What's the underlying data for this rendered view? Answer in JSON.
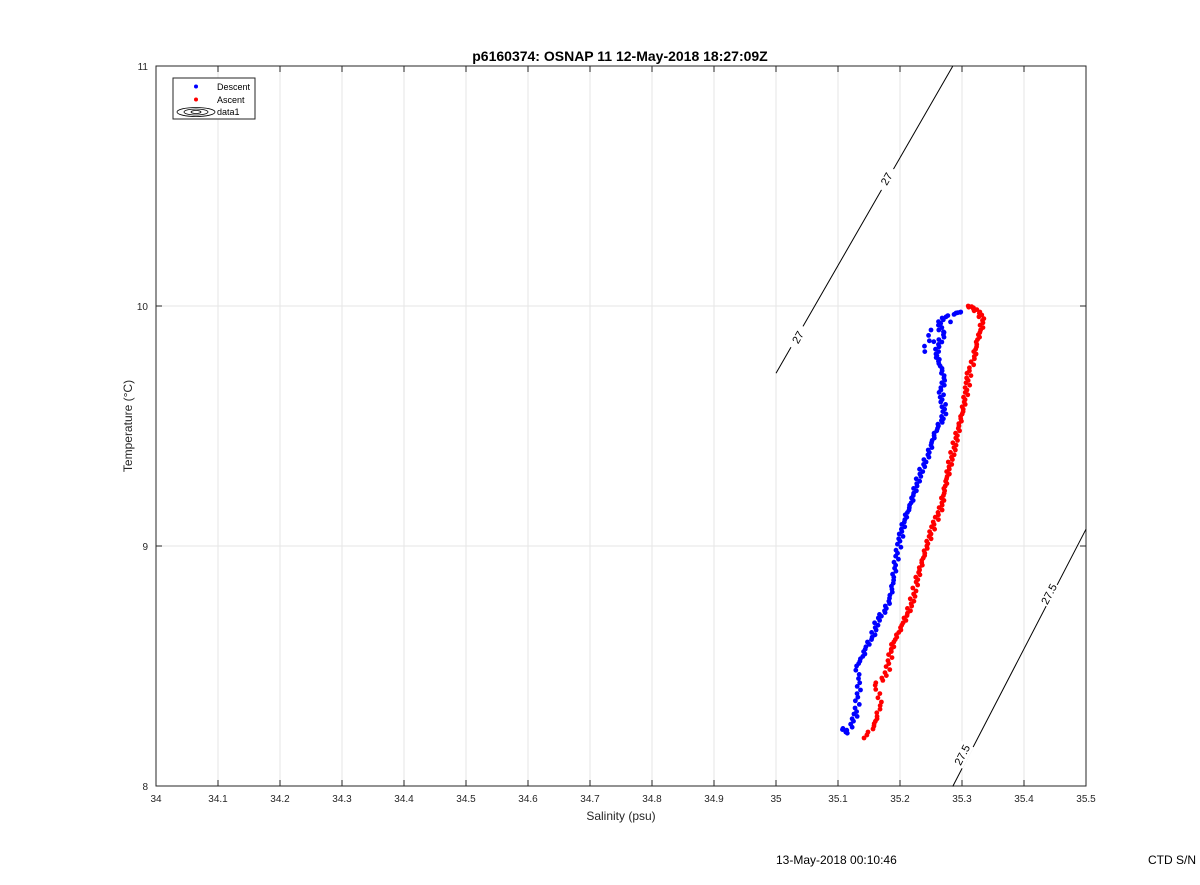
{
  "chart_data": {
    "type": "scatter",
    "title": "p6160374: OSNAP 11 12-May-2018 18:27:09Z",
    "xlabel": "Salinity (psu)",
    "ylabel": "Temperature (°C)",
    "xlim": [
      34,
      35.5
    ],
    "ylim": [
      8,
      11
    ],
    "x_ticks": [
      "34",
      "34.1",
      "34.2",
      "34.3",
      "34.4",
      "34.5",
      "34.6",
      "34.7",
      "34.8",
      "34.9",
      "35",
      "35.1",
      "35.2",
      "35.3",
      "35.4",
      "35.5"
    ],
    "y_ticks": [
      "8",
      "9",
      "10",
      "11"
    ],
    "grid": true,
    "legend_position": "top-left",
    "legend": [
      "Descent",
      "Ascent",
      "data1"
    ],
    "series": [
      {
        "name": "Descent",
        "color": "#0000ff",
        "points": [
          [
            35.108,
            8.24
          ],
          [
            35.115,
            8.22
          ],
          [
            35.125,
            8.27
          ],
          [
            35.13,
            8.31
          ],
          [
            35.132,
            8.37
          ],
          [
            35.135,
            8.43
          ],
          [
            35.13,
            8.5
          ],
          [
            35.14,
            8.54
          ],
          [
            35.145,
            8.58
          ],
          [
            35.155,
            8.62
          ],
          [
            35.16,
            8.66
          ],
          [
            35.165,
            8.7
          ],
          [
            35.175,
            8.73
          ],
          [
            35.182,
            8.77
          ],
          [
            35.187,
            8.82
          ],
          [
            35.19,
            8.87
          ],
          [
            35.193,
            8.92
          ],
          [
            35.196,
            8.97
          ],
          [
            35.2,
            9.02
          ],
          [
            35.203,
            9.06
          ],
          [
            35.207,
            9.1
          ],
          [
            35.212,
            9.14
          ],
          [
            35.218,
            9.18
          ],
          [
            35.222,
            9.22
          ],
          [
            35.227,
            9.26
          ],
          [
            35.232,
            9.3
          ],
          [
            35.238,
            9.34
          ],
          [
            35.245,
            9.38
          ],
          [
            35.25,
            9.42
          ],
          [
            35.255,
            9.46
          ],
          [
            35.262,
            9.5
          ],
          [
            35.27,
            9.53
          ],
          [
            35.272,
            9.57
          ],
          [
            35.268,
            9.61
          ],
          [
            35.266,
            9.65
          ],
          [
            35.272,
            9.69
          ],
          [
            35.268,
            9.73
          ],
          [
            35.262,
            9.77
          ],
          [
            35.258,
            9.8
          ],
          [
            35.262,
            9.84
          ],
          [
            35.27,
            9.88
          ],
          [
            35.262,
            9.92
          ],
          [
            35.268,
            9.95
          ],
          [
            35.29,
            9.97
          ],
          [
            35.298,
            9.975
          ],
          [
            35.24,
            9.81
          ],
          [
            35.25,
            9.9
          ]
        ]
      },
      {
        "name": "Ascent",
        "color": "#ff0000",
        "points": [
          [
            35.142,
            8.2
          ],
          [
            35.158,
            8.25
          ],
          [
            35.163,
            8.29
          ],
          [
            35.17,
            8.35
          ],
          [
            35.16,
            8.42
          ],
          [
            35.178,
            8.46
          ],
          [
            35.182,
            8.51
          ],
          [
            35.186,
            8.56
          ],
          [
            35.19,
            8.6
          ],
          [
            35.198,
            8.64
          ],
          [
            35.205,
            8.68
          ],
          [
            35.212,
            8.72
          ],
          [
            35.218,
            8.76
          ],
          [
            35.222,
            8.8
          ],
          [
            35.226,
            8.85
          ],
          [
            35.23,
            8.89
          ],
          [
            35.235,
            8.93
          ],
          [
            35.24,
            8.97
          ],
          [
            35.245,
            9.01
          ],
          [
            35.25,
            9.05
          ],
          [
            35.255,
            9.09
          ],
          [
            35.262,
            9.13
          ],
          [
            35.268,
            9.17
          ],
          [
            35.27,
            9.21
          ],
          [
            35.273,
            9.25
          ],
          [
            35.276,
            9.29
          ],
          [
            35.279,
            9.33
          ],
          [
            35.283,
            9.37
          ],
          [
            35.287,
            9.41
          ],
          [
            35.29,
            9.45
          ],
          [
            35.294,
            9.49
          ],
          [
            35.298,
            9.53
          ],
          [
            35.302,
            9.57
          ],
          [
            35.305,
            9.61
          ],
          [
            35.308,
            9.65
          ],
          [
            35.31,
            9.69
          ],
          [
            35.312,
            9.73
          ],
          [
            35.32,
            9.78
          ],
          [
            35.322,
            9.82
          ],
          [
            35.325,
            9.86
          ],
          [
            35.33,
            9.9
          ],
          [
            35.333,
            9.94
          ],
          [
            35.328,
            9.97
          ],
          [
            35.318,
            9.99
          ],
          [
            35.31,
            10.0
          ]
        ]
      }
    ],
    "contours": [
      {
        "label": "27",
        "from": [
          35.0,
          9.72
        ],
        "to": [
          35.285,
          10.999
        ]
      },
      {
        "label": "27.5",
        "from": [
          35.285,
          7.998
        ],
        "to": [
          35.5,
          9.07
        ]
      }
    ],
    "contour_labels": [
      {
        "text": "27",
        "x": 35.035,
        "y": 9.87
      },
      {
        "text": "27",
        "x": 35.178,
        "y": 10.53
      },
      {
        "text": "27.5",
        "x": 35.3,
        "y": 8.13
      },
      {
        "text": "27.5",
        "x": 35.44,
        "y": 8.8
      }
    ]
  },
  "footer": {
    "timestamp": "13-May-2018 00:10:46",
    "ctd": "CTD S/N"
  }
}
